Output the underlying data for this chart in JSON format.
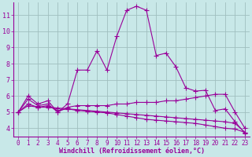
{
  "background_color": "#c8e8e8",
  "grid_color": "#a0bfbf",
  "line_color": "#990099",
  "marker": "+",
  "xlabel": "Windchill (Refroidissement éolien,°C)",
  "xlabel_color": "#990099",
  "xlim": [
    -0.5,
    23.5
  ],
  "ylim": [
    3.5,
    11.8
  ],
  "yticks": [
    4,
    5,
    6,
    7,
    8,
    9,
    10,
    11
  ],
  "xticks": [
    0,
    1,
    2,
    3,
    4,
    5,
    6,
    7,
    8,
    9,
    10,
    11,
    12,
    13,
    14,
    15,
    16,
    17,
    18,
    19,
    20,
    21,
    22,
    23
  ],
  "lines": [
    {
      "x": [
        0,
        1,
        2,
        3,
        4,
        5,
        6,
        7,
        8,
        9,
        10,
        11,
        12,
        13,
        14,
        15,
        16,
        17,
        18,
        19,
        20,
        21,
        22,
        23
      ],
      "y": [
        5.0,
        6.0,
        5.5,
        5.7,
        5.0,
        5.5,
        7.6,
        7.6,
        8.8,
        7.6,
        9.7,
        11.3,
        11.55,
        11.3,
        8.5,
        8.65,
        7.8,
        6.5,
        6.3,
        6.35,
        5.1,
        5.2,
        4.4,
        3.7
      ]
    },
    {
      "x": [
        0,
        1,
        2,
        3,
        4,
        5,
        6,
        7,
        8,
        9,
        10,
        11,
        12,
        13,
        14,
        15,
        16,
        17,
        18,
        19,
        20,
        21,
        22,
        23
      ],
      "y": [
        5.0,
        5.8,
        5.4,
        5.5,
        5.0,
        5.3,
        5.4,
        5.4,
        5.4,
        5.4,
        5.5,
        5.5,
        5.6,
        5.6,
        5.6,
        5.7,
        5.7,
        5.8,
        5.9,
        6.0,
        6.1,
        6.1,
        5.0,
        4.0
      ]
    },
    {
      "x": [
        0,
        1,
        2,
        3,
        4,
        5,
        6,
        7,
        8,
        9,
        10,
        11,
        12,
        13,
        14,
        15,
        16,
        17,
        18,
        19,
        20,
        21,
        22,
        23
      ],
      "y": [
        5.0,
        5.4,
        5.3,
        5.3,
        5.25,
        5.2,
        5.15,
        5.1,
        5.05,
        5.0,
        4.95,
        4.9,
        4.85,
        4.8,
        4.75,
        4.7,
        4.65,
        4.6,
        4.55,
        4.5,
        4.45,
        4.4,
        4.3,
        3.75
      ]
    },
    {
      "x": [
        0,
        1,
        2,
        3,
        4,
        5,
        6,
        7,
        8,
        9,
        10,
        11,
        12,
        13,
        14,
        15,
        16,
        17,
        18,
        19,
        20,
        21,
        22,
        23
      ],
      "y": [
        5.0,
        5.5,
        5.3,
        5.4,
        5.1,
        5.2,
        5.1,
        5.05,
        5.0,
        4.95,
        4.85,
        4.75,
        4.65,
        4.55,
        4.5,
        4.45,
        4.4,
        4.35,
        4.3,
        4.2,
        4.1,
        4.0,
        3.95,
        3.75
      ]
    }
  ]
}
